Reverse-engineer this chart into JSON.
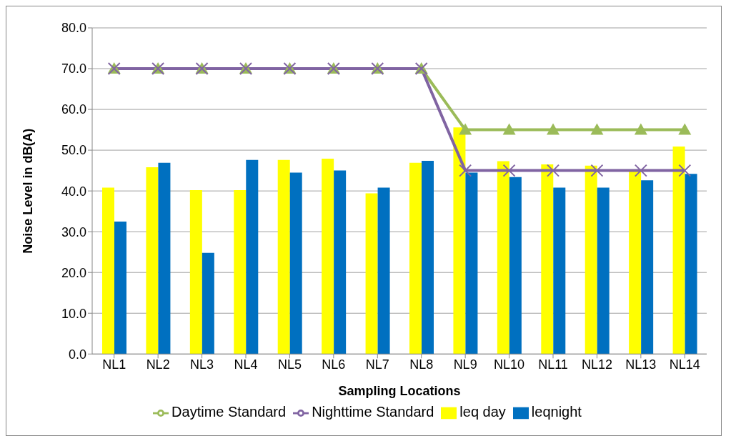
{
  "chart_data": {
    "type": "bar",
    "xlabel": "Sampling Locations",
    "ylabel": "Noise Level in dB(A)",
    "categories": [
      "NL1",
      "NL2",
      "NL3",
      "NL4",
      "NL5",
      "NL6",
      "NL7",
      "NL8",
      "NL9",
      "NL10",
      "NL11",
      "NL12",
      "NL13",
      "NL14"
    ],
    "series": [
      {
        "name": "leq day",
        "color": "#ffff00",
        "values": [
          40.8,
          45.8,
          40.2,
          40.2,
          47.6,
          47.9,
          39.4,
          46.9,
          55.6,
          47.3,
          46.5,
          46.2,
          44.9,
          50.9
        ]
      },
      {
        "name": "leqnight",
        "color": "#0070c0",
        "values": [
          32.5,
          46.9,
          24.8,
          47.6,
          44.5,
          45.0,
          40.8,
          47.4,
          44.5,
          43.4,
          40.8,
          40.8,
          42.6,
          44.2
        ]
      },
      {
        "name": "Daytime Standard",
        "type": "line",
        "marker": "triangle",
        "color": "#9bbb59",
        "values": [
          70,
          70,
          70,
          70,
          70,
          70,
          70,
          70,
          55,
          55,
          55,
          55,
          55,
          55
        ]
      },
      {
        "name": "Nighttime Standard",
        "type": "line",
        "marker": "cross",
        "color": "#8064a2",
        "values": [
          70,
          70,
          70,
          70,
          70,
          70,
          70,
          70,
          45,
          45,
          45,
          45,
          45,
          45
        ]
      }
    ],
    "ylim": [
      0,
      80
    ],
    "yticks": [
      {
        "value": 0,
        "label": "0.0"
      },
      {
        "value": 10,
        "label": "10.0"
      },
      {
        "value": 20,
        "label": "20.0"
      },
      {
        "value": 30,
        "label": "30.0"
      },
      {
        "value": 40,
        "label": "40.0"
      },
      {
        "value": 50,
        "label": "50.0"
      },
      {
        "value": 60,
        "label": "60.0"
      },
      {
        "value": 70,
        "label": "70.0"
      },
      {
        "value": 80,
        "label": "80.0"
      }
    ],
    "grid": "y",
    "legend": "bottom"
  }
}
